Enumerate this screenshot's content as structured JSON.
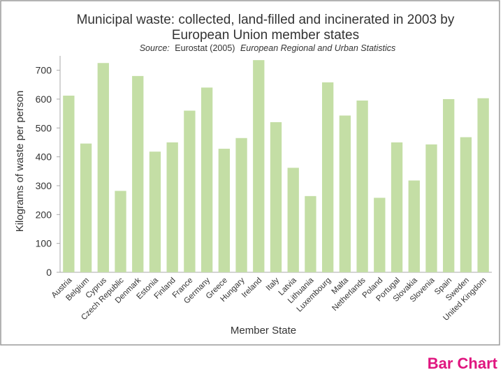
{
  "slide_label": "Bar Chart",
  "colors": {
    "bar": "#c4dea5",
    "frame_border": "#9a9a9a",
    "frame_background": "#ffffff",
    "axis": "#a8a8a8",
    "text": "#333333",
    "slide_label": "#e0157f"
  },
  "chart_data": {
    "type": "bar",
    "title_line1": "Municipal waste: collected, land-filled and incinerated in 2003 by",
    "title_line2": "European Union member states",
    "source_prefix": "Source:",
    "source_text": "Eurostat (2005)",
    "source_publication": "European Regional and Urban Statistics",
    "xlabel": "Member State",
    "ylabel": "Kilograms of waste per person",
    "ylim": [
      0,
      750
    ],
    "yticks": [
      0,
      100,
      200,
      300,
      400,
      500,
      600,
      700
    ],
    "grid": false,
    "legend": "none",
    "categories": [
      "Austria",
      "Belgium",
      "Cyprus",
      "Czech Republic",
      "Denmark",
      "Estonia",
      "Finland",
      "France",
      "Germany",
      "Greece",
      "Hungary",
      "Ireland",
      "Italy",
      "Latvia",
      "Lithuania",
      "Luxembourg",
      "Malta",
      "Netherlands",
      "Poland",
      "Portugal",
      "Slovakia",
      "Slovenia",
      "Spain",
      "Sweden",
      "United Kingdom"
    ],
    "values": [
      612,
      446,
      725,
      282,
      680,
      418,
      450,
      560,
      640,
      428,
      465,
      735,
      520,
      362,
      264,
      658,
      543,
      595,
      258,
      450,
      318,
      443,
      600,
      468,
      603
    ]
  }
}
